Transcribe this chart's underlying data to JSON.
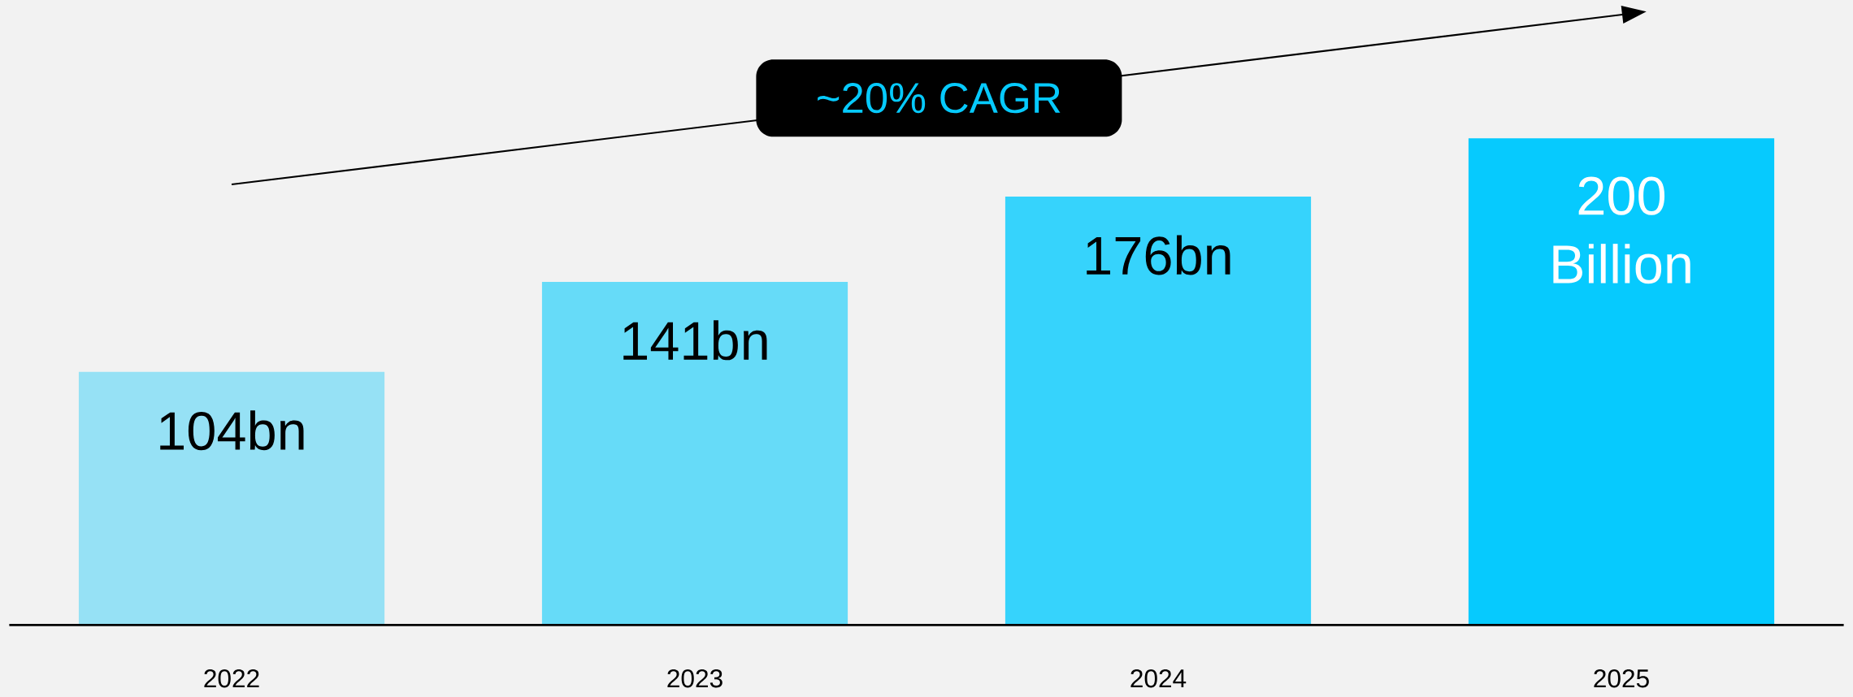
{
  "chart_data": {
    "type": "bar",
    "categories": [
      "2022",
      "2023",
      "2024",
      "2025"
    ],
    "values": [
      104,
      141,
      176,
      200
    ],
    "colors": [
      "#96e1f5",
      "#66dbf8",
      "#36d3fc",
      "#06cafe"
    ],
    "value_labels": [
      "104bn",
      "141bn",
      "176bn",
      "200 Billion"
    ],
    "annotations": [
      "~20% CAGR"
    ]
  }
}
